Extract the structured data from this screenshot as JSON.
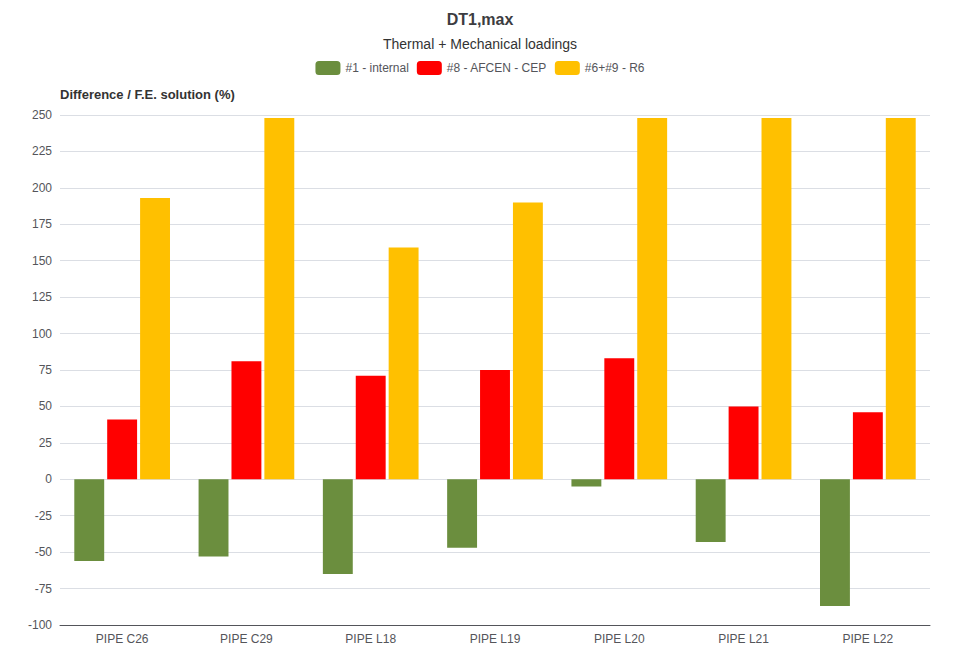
{
  "chart_data": {
    "type": "bar",
    "title": "DT1,max",
    "subtitle": "Thermal + Mechanical loadings",
    "ylabel": "Difference / F.E. solution (%)",
    "categories": [
      "PIPE C26",
      "PIPE C29",
      "PIPE L18",
      "PIPE L19",
      "PIPE L20",
      "PIPE L21",
      "PIPE L22"
    ],
    "series": [
      {
        "name": "#1 - internal",
        "color": "#6b8e3e",
        "values": [
          -56,
          -53,
          -65,
          -47,
          -5,
          -43,
          -87
        ]
      },
      {
        "name": "#8 - AFCEN - CEP",
        "color": "#ff0000",
        "values": [
          41,
          81,
          71,
          75,
          83,
          50,
          46
        ]
      },
      {
        "name": "#6+#9 - R6",
        "color": "#ffc000",
        "values": [
          193,
          248,
          159,
          190,
          248,
          248,
          248
        ]
      }
    ],
    "ylim": [
      -100,
      250
    ],
    "yticks": [
      -100,
      -75,
      -50,
      -25,
      0,
      25,
      50,
      75,
      100,
      125,
      150,
      175,
      200,
      225,
      250
    ],
    "grid": true,
    "legend": "top"
  }
}
